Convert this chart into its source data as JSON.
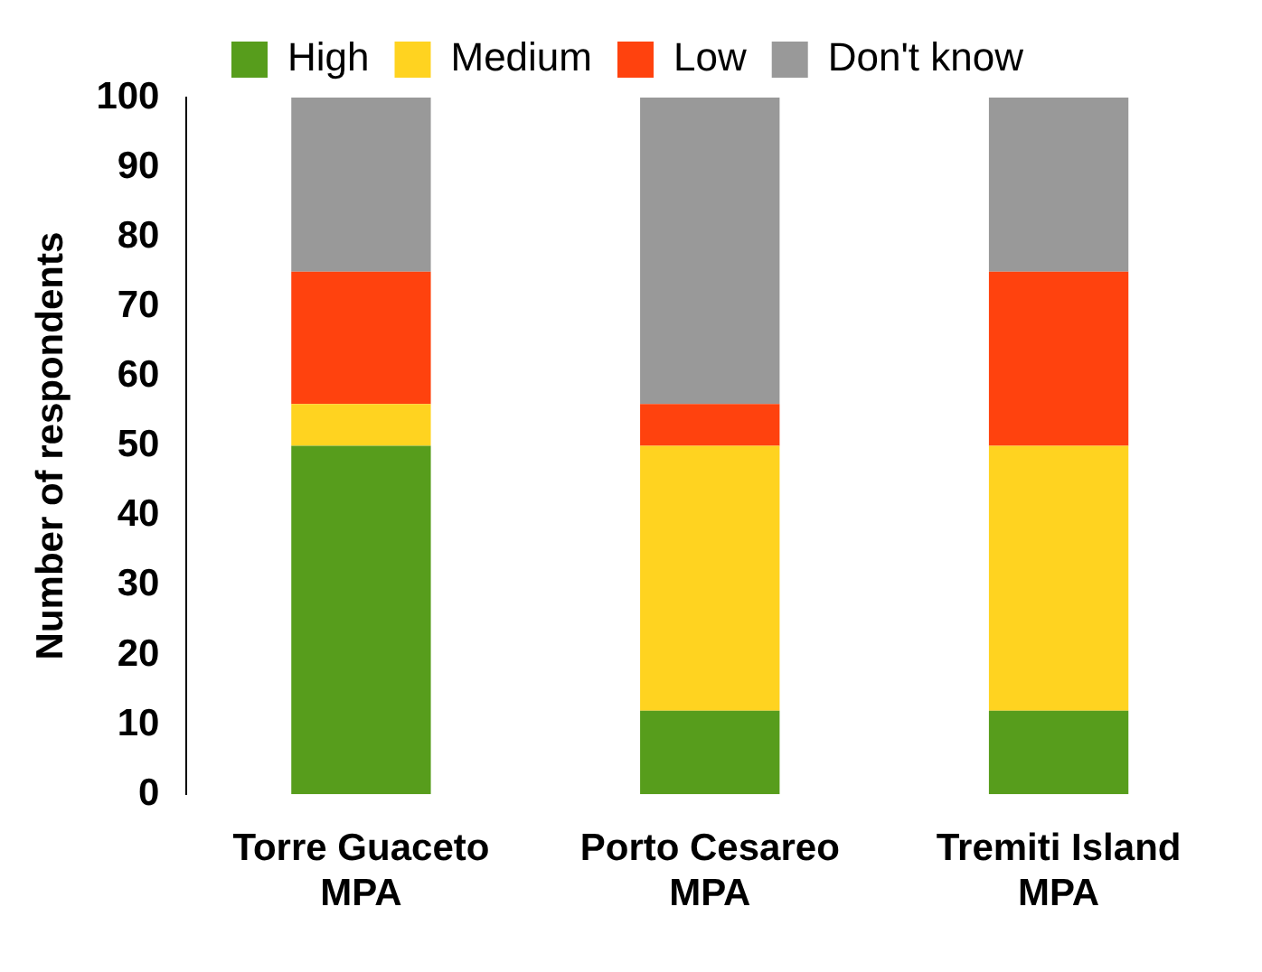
{
  "chart_data": {
    "type": "bar",
    "stacked": true,
    "ylabel": "Number of respondents",
    "categories": [
      "Torre Guaceto MPA",
      "Porto Cesareo MPA",
      "Tremiti Island MPA"
    ],
    "series": [
      {
        "name": "High",
        "color": "#579d1c",
        "values": [
          50,
          12,
          12
        ]
      },
      {
        "name": "Medium",
        "color": "#ffd320",
        "values": [
          6,
          38,
          38
        ]
      },
      {
        "name": "Low",
        "color": "#ff420e",
        "values": [
          19,
          6,
          25
        ]
      },
      {
        "name": "Don't know",
        "color": "#999999",
        "values": [
          25,
          44,
          25
        ]
      }
    ],
    "ylim": [
      0,
      100
    ],
    "yticks": [
      0,
      10,
      20,
      30,
      40,
      50,
      60,
      70,
      80,
      90,
      100
    ],
    "grid": false,
    "legend": "top"
  }
}
